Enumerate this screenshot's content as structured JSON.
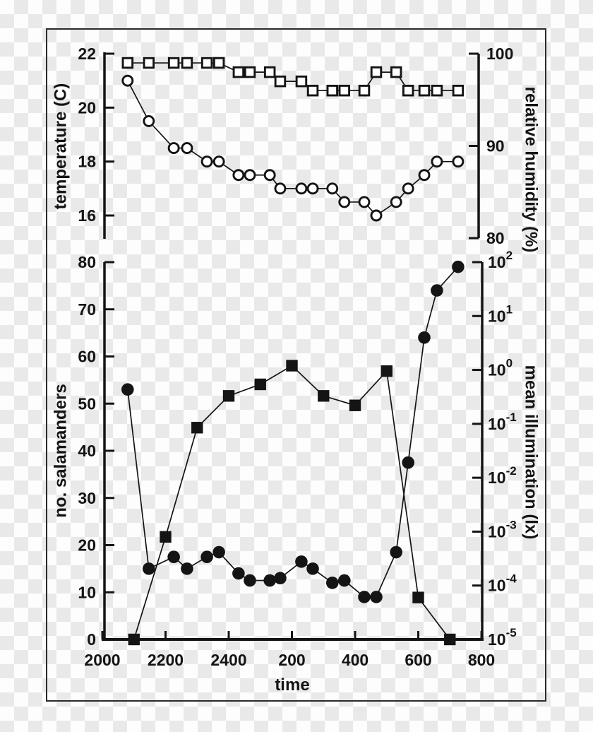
{
  "chart_data": {
    "type": "line",
    "description": "Two stacked panels sharing one time axis (overnight 2000 h to 0800 h)",
    "x_axis": {
      "title": "time",
      "tick_labels": [
        "2000",
        "2200",
        "2400",
        "200",
        "400",
        "600",
        "800"
      ],
      "tick_hours_after_2000": [
        0,
        2,
        4,
        6,
        8,
        10,
        12
      ]
    },
    "panels": [
      {
        "id": "top",
        "left_axis": {
          "title": "temperature (C)",
          "tick_labels": [
            "22",
            "20",
            "18",
            "16"
          ],
          "tick_values": [
            22,
            20,
            18,
            16
          ],
          "range": [
            16,
            22
          ]
        },
        "right_axis": {
          "title": "relative humidity (%)",
          "tick_labels": [
            "100",
            "90",
            "80"
          ],
          "tick_values": [
            100,
            90,
            80
          ],
          "range": [
            80,
            100
          ]
        },
        "series": [
          {
            "name": "relative humidity",
            "axis": "right",
            "marker": "open-square",
            "x_hours_after_2000": [
              0.8,
              1.47,
              2.26,
              2.68,
              3.31,
              3.69,
              4.31,
              4.67,
              5.3,
              5.63,
              6.3,
              6.66,
              7.28,
              7.66,
              8.29,
              8.67,
              9.3,
              9.68,
              10.19,
              10.59,
              11.26
            ],
            "values": [
              99,
              99,
              99,
              99,
              99,
              99,
              98,
              98,
              98,
              97,
              97,
              96,
              96,
              96,
              96,
              98,
              98,
              96,
              96,
              96,
              96
            ]
          },
          {
            "name": "temperature",
            "axis": "left",
            "marker": "open-circle",
            "x_hours_after_2000": [
              0.8,
              1.47,
              2.26,
              2.68,
              3.31,
              3.69,
              4.31,
              4.67,
              5.3,
              5.63,
              6.3,
              6.66,
              7.28,
              7.66,
              8.29,
              8.67,
              9.3,
              9.68,
              10.19,
              10.59,
              11.26
            ],
            "values": [
              21,
              19.5,
              18.5,
              18.5,
              18,
              18,
              17.5,
              17.5,
              17.5,
              17,
              17,
              17,
              17,
              16.5,
              16.5,
              16,
              16.5,
              17,
              17.5,
              18,
              18
            ]
          }
        ]
      },
      {
        "id": "bottom",
        "left_axis": {
          "title": "no. salamanders",
          "tick_labels": [
            "80",
            "70",
            "60",
            "50",
            "40",
            "30",
            "20",
            "10",
            "0"
          ],
          "tick_values": [
            80,
            70,
            60,
            50,
            40,
            30,
            20,
            10,
            0
          ],
          "range": [
            0,
            80
          ]
        },
        "right_axis": {
          "title": "mean illumination (lx)",
          "scale": "log10",
          "tick_base": "10",
          "tick_exponents": [
            "2",
            "1",
            "0",
            "-1",
            "-2",
            "-3",
            "-4",
            "-5"
          ],
          "range_lx": [
            1e-05,
            100
          ]
        },
        "series": [
          {
            "name": "mean illumination",
            "axis": "right",
            "marker": "filled-square",
            "x_hours_after_2000": [
              1,
              2,
              3,
              4,
              5,
              6,
              7,
              8,
              9,
              10,
              11
            ],
            "values_lx": [
              1e-05,
              0.0008,
              0.085,
              0.33,
              0.54,
              1.2,
              0.33,
              0.22,
              0.95,
              6e-05,
              1e-05
            ]
          },
          {
            "name": "no. salamanders",
            "axis": "left",
            "marker": "filled-circle",
            "x_hours_after_2000": [
              0.8,
              1.47,
              2.26,
              2.68,
              3.31,
              3.69,
              4.31,
              4.67,
              5.3,
              5.63,
              6.3,
              6.66,
              7.28,
              7.66,
              8.29,
              8.67,
              9.3,
              9.68,
              10.19,
              10.59,
              11.26
            ],
            "values": [
              53,
              15,
              17.5,
              15,
              17.5,
              18.5,
              14,
              12.5,
              12.5,
              13,
              16.5,
              15,
              12,
              12.5,
              9,
              9,
              18.5,
              37.5,
              64,
              74,
              79
            ]
          }
        ]
      }
    ]
  }
}
